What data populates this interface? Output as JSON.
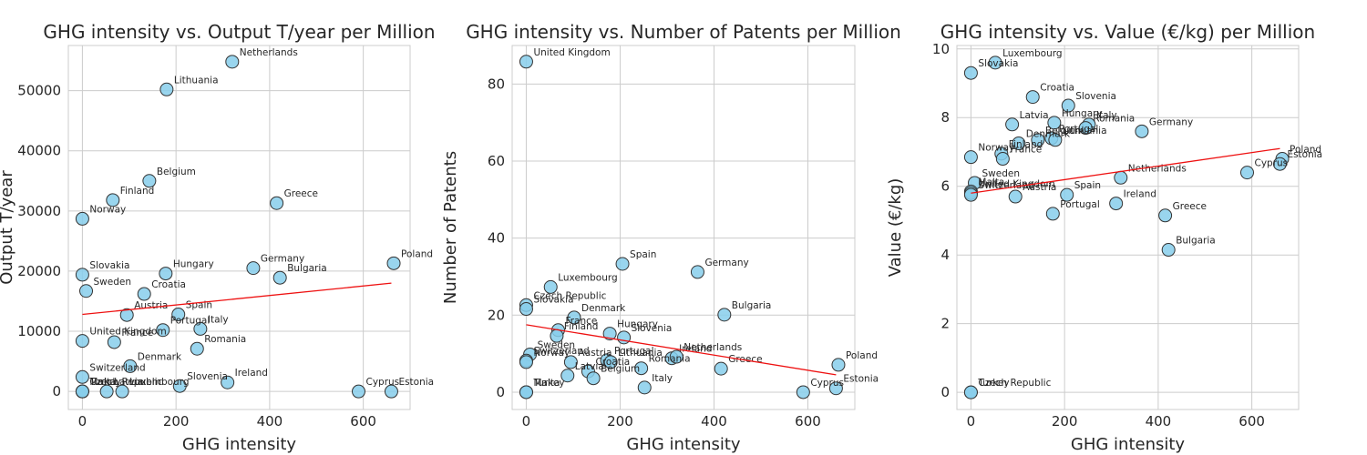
{
  "chart_data": [
    {
      "type": "scatter",
      "title": "GHG intensity vs. Output T/year per Million",
      "xlabel": "GHG intensity",
      "ylabel": "Output T/year",
      "xlim": [
        -30,
        700
      ],
      "ylim": [
        -3000,
        57500
      ],
      "xticks": [
        0,
        200,
        400,
        600
      ],
      "yticks": [
        0,
        10000,
        20000,
        30000,
        40000,
        50000
      ],
      "grid": true,
      "trendline": {
        "x": [
          0,
          660
        ],
        "y": [
          12800,
          18000
        ]
      },
      "points": [
        {
          "label": "Netherlands",
          "x": 320,
          "y": 54800
        },
        {
          "label": "Lithuania",
          "x": 180,
          "y": 50200
        },
        {
          "label": "Belgium",
          "x": 143,
          "y": 35000
        },
        {
          "label": "Finland",
          "x": 65,
          "y": 31800
        },
        {
          "label": "Greece",
          "x": 415,
          "y": 31300
        },
        {
          "label": "Norway",
          "x": 0,
          "y": 28700
        },
        {
          "label": "Poland",
          "x": 665,
          "y": 21300
        },
        {
          "label": "Germany",
          "x": 365,
          "y": 20500
        },
        {
          "label": "Hungary",
          "x": 178,
          "y": 19600
        },
        {
          "label": "Slovakia",
          "x": 0,
          "y": 19400
        },
        {
          "label": "Bulgaria",
          "x": 422,
          "y": 18900
        },
        {
          "label": "Sweden",
          "x": 8,
          "y": 16700
        },
        {
          "label": "Croatia",
          "x": 132,
          "y": 16200
        },
        {
          "label": "Austria",
          "x": 95,
          "y": 12700
        },
        {
          "label": "Spain",
          "x": 205,
          "y": 12800
        },
        {
          "label": "Portugal",
          "x": 172,
          "y": 10200
        },
        {
          "label": "Italy",
          "x": 252,
          "y": 10400
        },
        {
          "label": "United Kingdom",
          "x": 0,
          "y": 8400
        },
        {
          "label": "France",
          "x": 68,
          "y": 8200
        },
        {
          "label": "Romania",
          "x": 245,
          "y": 7100
        },
        {
          "label": "Denmark",
          "x": 102,
          "y": 4200
        },
        {
          "label": "Switzerland",
          "x": 0,
          "y": 2400
        },
        {
          "label": "Ireland",
          "x": 310,
          "y": 1500
        },
        {
          "label": "Slovenia",
          "x": 208,
          "y": 900
        },
        {
          "label": "Malta",
          "x": 0,
          "y": 0
        },
        {
          "label": "Czech Republic",
          "x": 0,
          "y": 0
        },
        {
          "label": "Turkey",
          "x": 0,
          "y": 0
        },
        {
          "label": "Latvia",
          "x": 52,
          "y": 0
        },
        {
          "label": "Luxembourg",
          "x": 85,
          "y": 0
        },
        {
          "label": "Cyprus",
          "x": 590,
          "y": 0
        },
        {
          "label": "Estonia",
          "x": 660,
          "y": 0
        }
      ]
    },
    {
      "type": "scatter",
      "title": "GHG intensity vs. Number of Patents per Million",
      "xlabel": "GHG intensity",
      "ylabel": "Number of Patents",
      "xlim": [
        -30,
        700
      ],
      "ylim": [
        -4.5,
        90
      ],
      "xticks": [
        0,
        200,
        400,
        600
      ],
      "yticks": [
        0,
        20,
        40,
        60,
        80
      ],
      "grid": true,
      "trendline": {
        "x": [
          0,
          660
        ],
        "y": [
          17.5,
          4.5
        ]
      },
      "points": [
        {
          "label": "United Kingdom",
          "x": 0,
          "y": 85.8
        },
        {
          "label": "Spain",
          "x": 205,
          "y": 33.3
        },
        {
          "label": "Germany",
          "x": 365,
          "y": 31.2
        },
        {
          "label": "Luxembourg",
          "x": 52,
          "y": 27.3
        },
        {
          "label": "Czech Republic",
          "x": 0,
          "y": 22.6
        },
        {
          "label": "Slovakia",
          "x": 0,
          "y": 21.6
        },
        {
          "label": "Bulgaria",
          "x": 422,
          "y": 20.1
        },
        {
          "label": "Denmark",
          "x": 102,
          "y": 19.4
        },
        {
          "label": "France",
          "x": 68,
          "y": 16.1
        },
        {
          "label": "Finland",
          "x": 65,
          "y": 14.6
        },
        {
          "label": "Hungary",
          "x": 178,
          "y": 15.2
        },
        {
          "label": "Slovenia",
          "x": 208,
          "y": 14.2
        },
        {
          "label": "Sweden",
          "x": 8,
          "y": 9.8
        },
        {
          "label": "Switzerland",
          "x": 0,
          "y": 8.2
        },
        {
          "label": "Norway",
          "x": 0,
          "y": 7.8
        },
        {
          "label": "Austria",
          "x": 95,
          "y": 7.8
        },
        {
          "label": "Portugal",
          "x": 172,
          "y": 8.3
        },
        {
          "label": "Lithuania",
          "x": 180,
          "y": 7.8
        },
        {
          "label": "Ireland",
          "x": 310,
          "y": 8.8
        },
        {
          "label": "Netherlands",
          "x": 320,
          "y": 9.2
        },
        {
          "label": "Romania",
          "x": 245,
          "y": 6.2
        },
        {
          "label": "Greece",
          "x": 415,
          "y": 6.1
        },
        {
          "label": "Poland",
          "x": 665,
          "y": 7.1
        },
        {
          "label": "Croatia",
          "x": 132,
          "y": 5.4
        },
        {
          "label": "Latvia",
          "x": 88,
          "y": 4.3
        },
        {
          "label": "Belgium",
          "x": 143,
          "y": 3.6
        },
        {
          "label": "Italy",
          "x": 252,
          "y": 1.2
        },
        {
          "label": "Estonia",
          "x": 660,
          "y": 1.0
        },
        {
          "label": "Malta",
          "x": 0,
          "y": 0
        },
        {
          "label": "Turkey",
          "x": 0,
          "y": 0
        },
        {
          "label": "Cyprus",
          "x": 590,
          "y": 0
        }
      ]
    },
    {
      "type": "scatter",
      "title": "GHG intensity vs. Value (€/kg) per Million",
      "xlabel": "GHG intensity",
      "ylabel": "Value (€/kg)",
      "xlim": [
        -30,
        700
      ],
      "ylim": [
        -0.5,
        10.1
      ],
      "xticks": [
        0,
        200,
        400,
        600
      ],
      "yticks": [
        0,
        2,
        4,
        6,
        8,
        10
      ],
      "grid": true,
      "trendline": {
        "x": [
          0,
          660
        ],
        "y": [
          5.8,
          7.1
        ]
      },
      "points": [
        {
          "label": "Luxembourg",
          "x": 52,
          "y": 9.6
        },
        {
          "label": "Slovakia",
          "x": 0,
          "y": 9.3
        },
        {
          "label": "Croatia",
          "x": 132,
          "y": 8.6
        },
        {
          "label": "Slovenia",
          "x": 208,
          "y": 8.35
        },
        {
          "label": "Latvia",
          "x": 88,
          "y": 7.8
        },
        {
          "label": "Hungary",
          "x": 178,
          "y": 7.85
        },
        {
          "label": "Italy",
          "x": 252,
          "y": 7.8
        },
        {
          "label": "Romania",
          "x": 245,
          "y": 7.7
        },
        {
          "label": "Germany",
          "x": 365,
          "y": 7.6
        },
        {
          "label": "Denmark",
          "x": 102,
          "y": 7.25
        },
        {
          "label": "Belgium",
          "x": 143,
          "y": 7.35
        },
        {
          "label": "Portugal",
          "x": 172,
          "y": 7.4
        },
        {
          "label": "Lithuania",
          "x": 180,
          "y": 7.35
        },
        {
          "label": "Finland",
          "x": 65,
          "y": 6.95
        },
        {
          "label": "France",
          "x": 68,
          "y": 6.8
        },
        {
          "label": "Norway",
          "x": 0,
          "y": 6.85
        },
        {
          "label": "Poland",
          "x": 665,
          "y": 6.8
        },
        {
          "label": "Estonia",
          "x": 660,
          "y": 6.65
        },
        {
          "label": "Cyprus",
          "x": 590,
          "y": 6.4
        },
        {
          "label": "Netherlands",
          "x": 320,
          "y": 6.25
        },
        {
          "label": "Sweden",
          "x": 8,
          "y": 6.1
        },
        {
          "label": "Malta",
          "x": 0,
          "y": 5.85
        },
        {
          "label": "United Kingdom",
          "x": 0,
          "y": 5.8
        },
        {
          "label": "Switzerland",
          "x": 0,
          "y": 5.75
        },
        {
          "label": "Austria",
          "x": 95,
          "y": 5.7
        },
        {
          "label": "Spain",
          "x": 205,
          "y": 5.75
        },
        {
          "label": "Ireland",
          "x": 310,
          "y": 5.5
        },
        {
          "label": "Portugal",
          "x": 175,
          "y": 5.2
        },
        {
          "label": "Greece",
          "x": 415,
          "y": 5.15
        },
        {
          "label": "Bulgaria",
          "x": 422,
          "y": 4.15
        },
        {
          "label": "Czech Republic",
          "x": 0,
          "y": 0
        },
        {
          "label": "Turkey",
          "x": 0,
          "y": 0
        }
      ]
    }
  ]
}
